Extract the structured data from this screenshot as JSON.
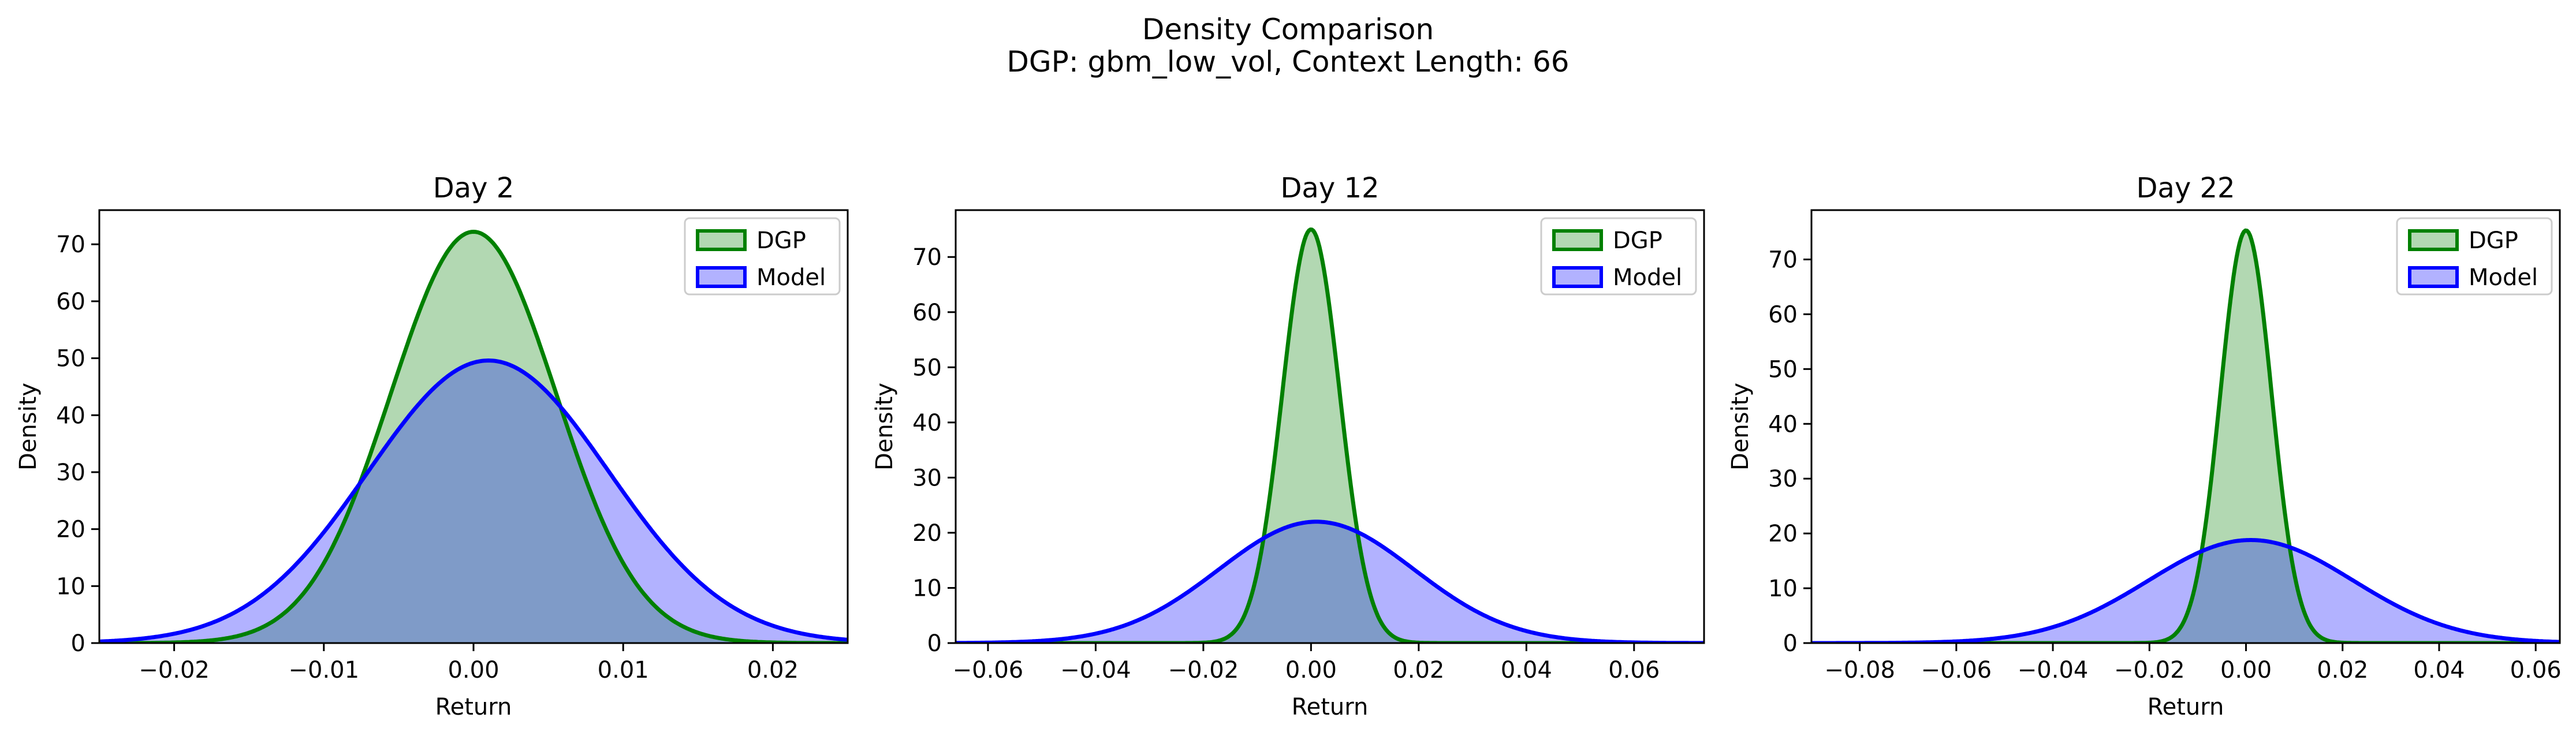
{
  "figure": {
    "title": "Density Comparison",
    "subtitle": "DGP: gbm_low_vol, Context Length: 66"
  },
  "colors": {
    "dgp_line": "#008000",
    "dgp_fill": "#b2d8b2",
    "model_line": "#0000ff",
    "model_fill": "#b2b2ff",
    "overlap_fill": "#7f9bc8"
  },
  "chart_data": [
    {
      "type": "area",
      "title": "Day 2",
      "xlabel": "Return",
      "ylabel": "Density",
      "xlim": [
        -0.025,
        0.025
      ],
      "ylim": [
        0,
        76
      ],
      "xticks": [
        -0.02,
        -0.01,
        0.0,
        0.01,
        0.02
      ],
      "xtick_labels": [
        "−0.02",
        "−0.01",
        "0.00",
        "0.01",
        "0.02"
      ],
      "yticks": [
        0,
        10,
        20,
        30,
        40,
        50,
        60,
        70
      ],
      "legend": {
        "position": "top-right",
        "entries": [
          "DGP",
          "Model"
        ]
      },
      "series": [
        {
          "name": "DGP",
          "distribution": "normal",
          "mean": 0.0,
          "peak": 72.2
        },
        {
          "name": "Model",
          "distribution": "normal",
          "mean": 0.001,
          "peak": 49.6
        }
      ]
    },
    {
      "type": "area",
      "title": "Day 12",
      "xlabel": "Return",
      "ylabel": "Density",
      "xlim": [
        -0.066,
        0.073
      ],
      "ylim": [
        0,
        78.5
      ],
      "xticks": [
        -0.06,
        -0.04,
        -0.02,
        0.0,
        0.02,
        0.04,
        0.06
      ],
      "xtick_labels": [
        "−0.06",
        "−0.04",
        "−0.02",
        "0.00",
        "0.02",
        "0.04",
        "0.06"
      ],
      "yticks": [
        0,
        10,
        20,
        30,
        40,
        50,
        60,
        70
      ],
      "legend": {
        "position": "top-right",
        "entries": [
          "DGP",
          "Model"
        ]
      },
      "series": [
        {
          "name": "DGP",
          "distribution": "normal",
          "mean": 0.0,
          "peak": 75.0
        },
        {
          "name": "Model",
          "distribution": "normal",
          "mean": 0.001,
          "peak": 22.0
        }
      ]
    },
    {
      "type": "area",
      "title": "Day 22",
      "xlabel": "Return",
      "ylabel": "Density",
      "xlim": [
        -0.09,
        0.065
      ],
      "ylim": [
        0,
        79
      ],
      "xticks": [
        -0.08,
        -0.06,
        -0.04,
        -0.02,
        0.0,
        0.02,
        0.04,
        0.06
      ],
      "xtick_labels": [
        "−0.08",
        "−0.06",
        "−0.04",
        "−0.02",
        "0.00",
        "0.02",
        "0.04",
        "0.06"
      ],
      "yticks": [
        0,
        10,
        20,
        30,
        40,
        50,
        60,
        70
      ],
      "legend": {
        "position": "top-right",
        "entries": [
          "DGP",
          "Model"
        ]
      },
      "series": [
        {
          "name": "DGP",
          "distribution": "normal",
          "mean": 0.0,
          "peak": 75.3
        },
        {
          "name": "Model",
          "distribution": "normal",
          "mean": 0.001,
          "peak": 18.8
        }
      ]
    }
  ]
}
